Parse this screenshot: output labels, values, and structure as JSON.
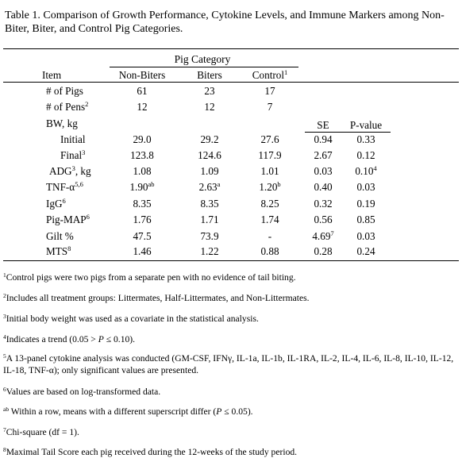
{
  "caption": "Table 1. Comparison of Growth Performance, Cytokine Levels, and Immune Markers among Non-Biter, Biter, and Control Pig Categories.",
  "header": {
    "group_label": "Pig Category",
    "item": "Item",
    "non_biters": "Non-Biters",
    "biters": "Biters",
    "control": "Control",
    "control_sup": "1",
    "se": "SE",
    "pvalue": "P-value"
  },
  "rows": [
    {
      "label": "# of Pigs",
      "sup": "",
      "tail": "",
      "nb": "61",
      "nb_sup": "",
      "b": "23",
      "b_sup": "",
      "c": "17",
      "c_sup": "",
      "se": "",
      "se_sup": "",
      "p": "",
      "p_sup": ""
    },
    {
      "label": "# of Pens",
      "sup": "2",
      "tail": "",
      "nb": "12",
      "nb_sup": "",
      "b": "12",
      "b_sup": "",
      "c": "7",
      "c_sup": "",
      "se": "",
      "se_sup": "",
      "p": "",
      "p_sup": ""
    },
    {
      "label": "BW, kg",
      "sup": "",
      "tail": "",
      "nb": "",
      "nb_sup": "",
      "b": "",
      "b_sup": "",
      "c": "",
      "c_sup": "",
      "se": "",
      "se_sup": "",
      "p": "",
      "p_sup": ""
    },
    {
      "label": "Initial",
      "sup": "",
      "tail": "",
      "nb": "29.0",
      "nb_sup": "",
      "b": "29.2",
      "b_sup": "",
      "c": "27.6",
      "c_sup": "",
      "se": "0.94",
      "se_sup": "",
      "p": "0.33",
      "p_sup": ""
    },
    {
      "label": "Final",
      "sup": "3",
      "tail": "",
      "nb": "123.8",
      "nb_sup": "",
      "b": "124.6",
      "b_sup": "",
      "c": "117.9",
      "c_sup": "",
      "se": "2.67",
      "se_sup": "",
      "p": "0.12",
      "p_sup": ""
    },
    {
      "label": "ADG",
      "sup": "3",
      "tail": ", kg",
      "nb": "1.08",
      "nb_sup": "",
      "b": "1.09",
      "b_sup": "",
      "c": "1.01",
      "c_sup": "",
      "se": "0.03",
      "se_sup": "",
      "p": "0.10",
      "p_sup": "4"
    },
    {
      "label": "TNF-α",
      "sup": "5,6",
      "tail": "",
      "nb": "1.90",
      "nb_sup": "ab",
      "b": "2.63",
      "b_sup": "a",
      "c": "1.20",
      "c_sup": "b",
      "se": "0.40",
      "se_sup": "",
      "p": "0.03",
      "p_sup": ""
    },
    {
      "label": "IgG",
      "sup": "6",
      "tail": "",
      "nb": "8.35",
      "nb_sup": "",
      "b": "8.35",
      "b_sup": "",
      "c": "8.25",
      "c_sup": "",
      "se": "0.32",
      "se_sup": "",
      "p": "0.19",
      "p_sup": ""
    },
    {
      "label": "Pig-MAP",
      "sup": "6",
      "tail": "",
      "nb": "1.76",
      "nb_sup": "",
      "b": "1.71",
      "b_sup": "",
      "c": "1.74",
      "c_sup": "",
      "se": "0.56",
      "se_sup": "",
      "p": "0.85",
      "p_sup": ""
    },
    {
      "label": "Gilt %",
      "sup": "",
      "tail": "",
      "nb": "47.5",
      "nb_sup": "",
      "b": "73.9",
      "b_sup": "",
      "c": "-",
      "c_sup": "",
      "se": "4.69",
      "se_sup": "7",
      "p": "0.03",
      "p_sup": ""
    },
    {
      "label": "MTS",
      "sup": "8",
      "tail": "",
      "nb": "1.46",
      "nb_sup": "",
      "b": "1.22",
      "b_sup": "",
      "c": "0.88",
      "c_sup": "",
      "se": "0.28",
      "se_sup": "",
      "p": "0.24",
      "p_sup": ""
    }
  ],
  "footnotes": [
    {
      "mark": "1",
      "text": "Control pigs were two pigs from a separate pen with no evidence of tail biting."
    },
    {
      "mark": "2",
      "text": "Includes all treatment groups: Littermates, Half-Littermates, and Non-Littermates."
    },
    {
      "mark": "3",
      "text": "Initial body weight was used as a covariate in the statistical analysis."
    },
    {
      "mark": "4",
      "text": "Indicates a trend (0.05 > P ≤ 0.10)."
    },
    {
      "mark": "5",
      "text": "A 13-panel cytokine analysis was conducted (GM-CSF, IFNγ, IL-1a, IL-1b, IL-1RA, IL-2, IL-4, IL-6, IL-8, IL-10, IL-12, IL-18, TNF-α); only significant values are presented."
    },
    {
      "mark": "6",
      "text": "Values are based on log-transformed data."
    },
    {
      "mark": "ab",
      "text": " Within a row, means with a different superscript differ (P ≤ 0.05)."
    },
    {
      "mark": "7",
      "text": "Chi-square (df = 1)."
    },
    {
      "mark": "8",
      "text": "Maximal Tail Score each pig received during the 12-weeks of the study period."
    }
  ]
}
